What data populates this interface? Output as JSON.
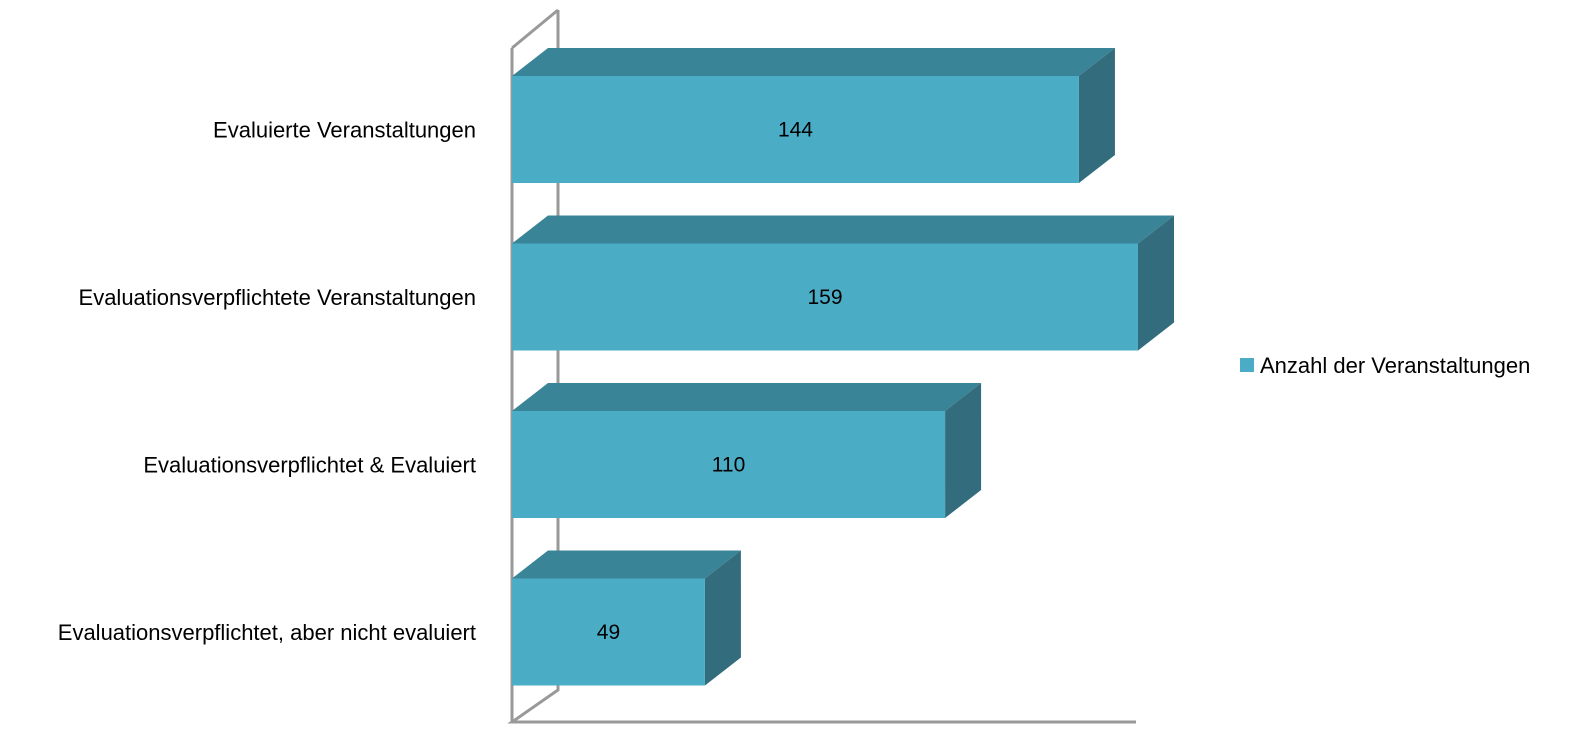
{
  "chart_data": {
    "type": "bar",
    "orientation": "horizontal",
    "three_d": true,
    "categories": [
      "Evaluierte Veranstaltungen",
      "Evaluationsverpflichtete Veranstaltungen",
      "Evaluationsverpflichtet & Evaluiert",
      "Evaluationsverpflichtet, aber nicht evaluiert"
    ],
    "series": [
      {
        "name": "Anzahl der Veranstaltungen",
        "values": [
          144,
          159,
          110,
          49
        ]
      }
    ],
    "title": "",
    "xlabel": "",
    "ylabel": "",
    "xlim": [
      0,
      159
    ],
    "grid": false,
    "data_labels": true,
    "legend": {
      "position": "right",
      "entries": [
        "Anzahl der Veranstaltungen"
      ]
    },
    "colors": {
      "bar_front": "#4bacc6",
      "bar_top": "#3a8497",
      "bar_side": "#336c7c",
      "axis_wall": "#999999"
    }
  }
}
